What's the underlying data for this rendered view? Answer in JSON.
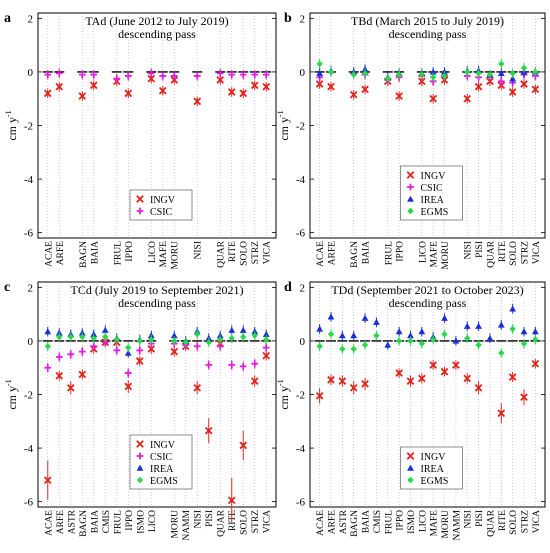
{
  "colors": {
    "INGV": "#e0241b",
    "CSIC": "#e01ee0",
    "IREA": "#1a2fd6",
    "EGMS": "#27d84a"
  },
  "chart_data": [
    {
      "panel_letter": "a",
      "type": "scatter",
      "title": "TAd (June 2012 to July 2019)",
      "subtitle": "descending pass",
      "ylabel": "cm y",
      "ylabel_sup": "-1",
      "ylim": [
        -6.2,
        2.2
      ],
      "yticks": [
        2,
        0,
        -2,
        -4,
        -6
      ],
      "grid": "vertical dotted",
      "legend_position": "lower-center",
      "legend": [
        "INGV",
        "CSIC"
      ],
      "categories": [
        "ACAE",
        "ARFE",
        "",
        "BAGN",
        "BAIA",
        "",
        "FRUL",
        "IPPO",
        "",
        "LICO",
        "MAFE",
        "MORU",
        "",
        "NISI",
        "",
        "QUAR",
        "RITE",
        "SOLO",
        "STRZ",
        "VICA"
      ],
      "series": [
        {
          "name": "INGV",
          "marker": "x",
          "values": [
            -0.8,
            -0.55,
            null,
            -0.9,
            -0.5,
            null,
            -0.35,
            -0.8,
            null,
            -0.25,
            -0.7,
            -0.3,
            null,
            -1.1,
            null,
            -0.3,
            -0.75,
            -0.8,
            -0.5,
            -0.55
          ]
        },
        {
          "name": "CSIC",
          "marker": "plus",
          "values": [
            -0.1,
            -0.05,
            null,
            -0.1,
            -0.1,
            null,
            -0.25,
            -0.15,
            null,
            -0.05,
            -0.15,
            -0.15,
            null,
            -0.15,
            null,
            -0.05,
            -0.1,
            -0.1,
            -0.1,
            -0.1
          ]
        }
      ]
    },
    {
      "panel_letter": "b",
      "type": "scatter",
      "title": "TBd (March 2015 to July 2019)",
      "subtitle": "descending pass",
      "ylabel": "cm y",
      "ylabel_sup": "-1",
      "ylim": [
        -6.2,
        2.2
      ],
      "yticks": [
        2,
        0,
        -2,
        -4,
        -6
      ],
      "grid": "vertical dotted",
      "legend_position": "lower-center",
      "legend": [
        "INGV",
        "CSIC",
        "IREA",
        "EGMS"
      ],
      "categories": [
        "ACAE",
        "ARFE",
        "",
        "BAGN",
        "BAIA",
        "",
        "FRUL",
        "IPPO",
        "",
        "LICO",
        "MAFE",
        "MORU",
        "",
        "NISI",
        "PISI",
        "QUAR",
        "RITE",
        "SOLO",
        "STRZ",
        "VICA"
      ],
      "series": [
        {
          "name": "INGV",
          "marker": "x",
          "values": [
            -0.45,
            -0.55,
            null,
            -0.85,
            -0.65,
            null,
            -0.35,
            -0.9,
            null,
            -0.35,
            -1.0,
            -0.3,
            null,
            -1.0,
            -0.55,
            -0.35,
            -0.5,
            -0.75,
            -0.45,
            -0.65
          ]
        },
        {
          "name": "CSIC",
          "marker": "plus",
          "values": [
            -0.2,
            0.0,
            null,
            -0.05,
            -0.1,
            null,
            -0.3,
            -0.2,
            null,
            -0.15,
            -0.35,
            -0.15,
            null,
            -0.15,
            -0.2,
            -0.2,
            -0.35,
            -0.4,
            -0.1,
            -0.15
          ]
        },
        {
          "name": "IREA",
          "marker": "triangle",
          "values": [
            -0.05,
            0.05,
            null,
            0.0,
            0.1,
            null,
            -0.2,
            -0.05,
            null,
            -0.05,
            0.0,
            0.0,
            null,
            0.05,
            0.05,
            -0.1,
            -0.05,
            -0.25,
            0.0,
            0.0
          ]
        },
        {
          "name": "EGMS",
          "marker": "diamond",
          "values": [
            0.3,
            0.0,
            null,
            -0.1,
            -0.05,
            null,
            -0.25,
            -0.1,
            null,
            -0.1,
            -0.2,
            -0.15,
            null,
            0.0,
            -0.05,
            -0.1,
            0.3,
            -0.05,
            0.15,
            0.0
          ]
        }
      ]
    },
    {
      "panel_letter": "c",
      "type": "scatter",
      "title": "TCd (July 2019 to September 2021)",
      "subtitle": "descending pass",
      "ylabel": "cm y",
      "ylabel_sup": "-1",
      "ylim": [
        -6.2,
        2.2
      ],
      "yticks": [
        2,
        0,
        -2,
        -4,
        -6
      ],
      "grid": "vertical dotted",
      "legend_position": "lower-center",
      "legend": [
        "INGV",
        "CSIC",
        "IREA",
        "EGMS"
      ],
      "categories": [
        "ACAE",
        "ARFE",
        "ASTR",
        "BAGN",
        "BAIA",
        "CMIS",
        "FRUL",
        "IPPO",
        "ISMO",
        "LICO",
        "",
        "MORU",
        "NAMM",
        "NISI",
        "PISI",
        "QUAR",
        "RITE",
        "SOLO",
        "STRZ",
        "VICA"
      ],
      "series": [
        {
          "name": "INGV",
          "marker": "x",
          "values": [
            -5.2,
            -1.3,
            -1.75,
            -1.25,
            -0.3,
            -0.05,
            -0.05,
            -1.7,
            -0.75,
            -0.3,
            null,
            -0.4,
            -0.2,
            -1.75,
            -3.35,
            -0.1,
            -5.95,
            -3.9,
            -1.5,
            -0.55
          ]
        },
        {
          "name": "CSIC",
          "marker": "plus",
          "values": [
            -1.0,
            -0.6,
            -0.5,
            -0.4,
            -0.2,
            -0.05,
            -0.35,
            -1.2,
            -0.35,
            -0.1,
            null,
            -0.1,
            -0.15,
            -0.2,
            -0.9,
            -0.2,
            -0.9,
            -0.95,
            -0.85,
            -0.25
          ]
        },
        {
          "name": "IREA",
          "marker": "triangle",
          "values": [
            0.35,
            0.3,
            0.25,
            0.3,
            0.25,
            0.4,
            0.1,
            -0.45,
            0.05,
            0.2,
            null,
            0.2,
            0.0,
            0.35,
            0.1,
            0.2,
            0.4,
            0.4,
            0.35,
            0.25
          ]
        },
        {
          "name": "EGMS",
          "marker": "diamond",
          "values": [
            -0.2,
            0.15,
            0.15,
            0.15,
            0.1,
            0.15,
            0.05,
            -0.25,
            0.0,
            0.05,
            null,
            0.0,
            -0.05,
            0.25,
            -0.05,
            0.05,
            0.1,
            0.15,
            0.2,
            0.05
          ]
        }
      ]
    },
    {
      "panel_letter": "d",
      "type": "scatter",
      "title": "TDd (September 2021 to October 2023)",
      "subtitle": "descending pass",
      "ylabel": "cm y",
      "ylabel_sup": "-1",
      "ylim": [
        -6.2,
        2.2
      ],
      "yticks": [
        2,
        0,
        -2,
        -4,
        -6
      ],
      "grid": "vertical dotted",
      "legend_position": "lower-center",
      "legend": [
        "INGV",
        "IREA",
        "EGMS"
      ],
      "categories": [
        "ACAE",
        "ARFE",
        "ASTR",
        "BAGN",
        "BAIA",
        "CMIS",
        "FRUL",
        "IPPO",
        "ISMO",
        "LICO",
        "MAFE",
        "MORU",
        "NAMM",
        "NISI",
        "PISI",
        "QUAR",
        "RITE",
        "SOLO",
        "STRZ",
        "VICA"
      ],
      "series": [
        {
          "name": "INGV",
          "marker": "x",
          "values": [
            -2.05,
            -1.45,
            -1.5,
            -1.75,
            -1.6,
            null,
            null,
            -1.2,
            -1.5,
            -1.4,
            -0.9,
            -1.15,
            -0.9,
            -1.4,
            -1.75,
            null,
            -2.7,
            -1.35,
            -2.1,
            -0.85
          ]
        },
        {
          "name": "IREA",
          "marker": "triangle",
          "values": [
            0.45,
            0.9,
            0.2,
            0.2,
            0.85,
            0.7,
            -0.15,
            0.35,
            0.2,
            0.35,
            0.15,
            0.85,
            0.0,
            0.55,
            0.55,
            0.1,
            0.6,
            1.2,
            0.35,
            0.35
          ]
        },
        {
          "name": "EGMS",
          "marker": "diamond",
          "values": [
            -0.2,
            0.25,
            -0.3,
            -0.3,
            -0.15,
            0.2,
            null,
            0.0,
            0.0,
            -0.1,
            0.05,
            0.25,
            null,
            0.1,
            -0.15,
            null,
            -0.45,
            0.45,
            -0.1,
            0.05
          ]
        }
      ]
    }
  ]
}
